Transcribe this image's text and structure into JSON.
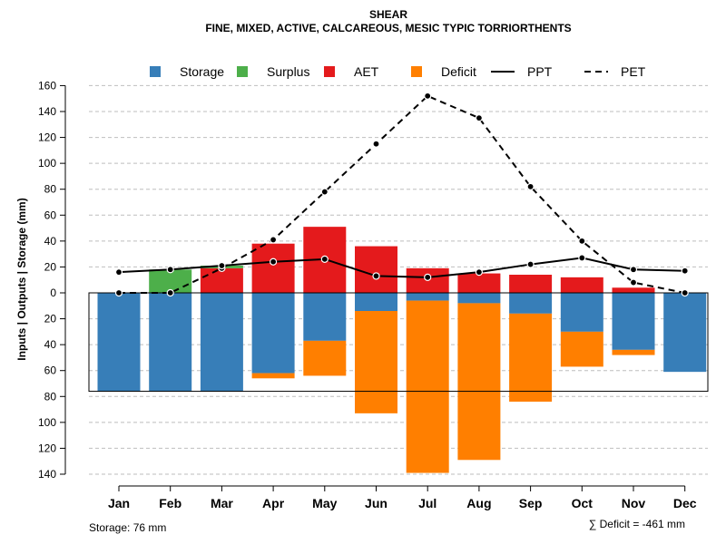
{
  "chart_data": {
    "type": "bar",
    "title": "SHEAR",
    "subtitle": "FINE, MIXED, ACTIVE, CALCAREOUS, MESIC TYPIC TORRIORTHENTS",
    "ylabel": "Inputs | Outputs | Storage    (mm)",
    "ylim": [
      -140,
      160
    ],
    "yticks": [
      160,
      140,
      120,
      100,
      80,
      60,
      40,
      20,
      0,
      -20,
      -40,
      -60,
      -80,
      -100,
      -120,
      -140
    ],
    "ytick_labels": [
      "160",
      "140",
      "120",
      "100",
      "80",
      "60",
      "40",
      "20",
      "0",
      "20",
      "40",
      "60",
      "80",
      "100",
      "120",
      "140"
    ],
    "categories": [
      "Jan",
      "Feb",
      "Mar",
      "Apr",
      "May",
      "Jun",
      "Jul",
      "Aug",
      "Sep",
      "Oct",
      "Nov",
      "Dec"
    ],
    "legend": [
      {
        "label": "Storage",
        "kind": "box",
        "color": "#377eb8"
      },
      {
        "label": "Surplus",
        "kind": "box",
        "color": "#4daf4a"
      },
      {
        "label": "AET",
        "kind": "box",
        "color": "#e41a1c"
      },
      {
        "label": "Deficit",
        "kind": "box",
        "color": "#ff7f00"
      },
      {
        "label": "PPT",
        "kind": "solid",
        "color": "#000000"
      },
      {
        "label": "PET",
        "kind": "dashed",
        "color": "#000000"
      }
    ],
    "storage_capacity": 76,
    "series": {
      "storage": [
        76,
        76,
        76,
        62,
        37,
        14,
        6,
        8,
        16,
        30,
        44,
        61
      ],
      "surplus": [
        0,
        18,
        2,
        0,
        0,
        0,
        0,
        0,
        0,
        0,
        0,
        0
      ],
      "aet": [
        0,
        0,
        19,
        38,
        51,
        36,
        19,
        15,
        14,
        12,
        4,
        0
      ],
      "deficit": [
        0,
        0,
        0,
        4,
        27,
        79,
        133,
        121,
        68,
        27,
        4,
        0
      ],
      "ppt": [
        16,
        18,
        21,
        24,
        26,
        13,
        12,
        16,
        22,
        27,
        18,
        17
      ],
      "pet": [
        0,
        0,
        19,
        41,
        78,
        115,
        152,
        135,
        82,
        40,
        8,
        0
      ]
    },
    "colors": {
      "storage": "#377eb8",
      "surplus": "#4daf4a",
      "aet": "#e41a1c",
      "deficit": "#ff7f00",
      "line": "#000000",
      "grid": "#bebebe"
    }
  },
  "footer": {
    "storage_note": "Storage: 76 mm",
    "deficit_note": "∑ Deficit = -461 mm"
  }
}
